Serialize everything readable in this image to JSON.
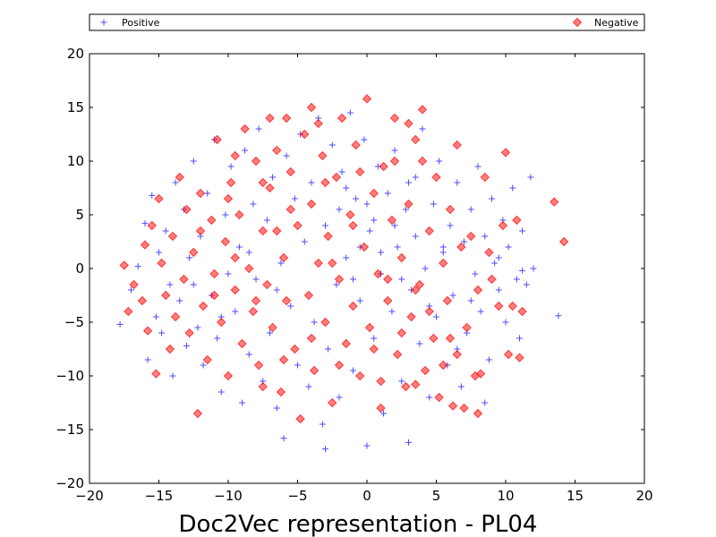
{
  "chart_data": {
    "type": "scatter",
    "title": "Doc2Vec representation - PL04",
    "xlabel": "",
    "ylabel": "",
    "xlim": [
      -20,
      20
    ],
    "ylim": [
      -20,
      20
    ],
    "xticks": [
      -20,
      -15,
      -10,
      -5,
      0,
      5,
      10,
      15,
      20
    ],
    "yticks": [
      -20,
      -15,
      -10,
      -5,
      0,
      5,
      10,
      15,
      20
    ],
    "grid": false,
    "legend_placement": "top, above plot, spanning full width",
    "series": [
      {
        "name": "Positive",
        "marker": "plus",
        "color": "#0000ff",
        "points": [
          [
            -17.8,
            -5.2
          ],
          [
            -17.0,
            -2.0
          ],
          [
            -16.5,
            0.2
          ],
          [
            -16.0,
            4.2
          ],
          [
            -15.8,
            -8.5
          ],
          [
            -15.5,
            6.8
          ],
          [
            -15.2,
            -4.5
          ],
          [
            -15.0,
            1.5
          ],
          [
            -14.8,
            -6.0
          ],
          [
            -14.5,
            3.5
          ],
          [
            -14.2,
            -1.5
          ],
          [
            -14.0,
            -10.0
          ],
          [
            -13.8,
            8.0
          ],
          [
            -13.5,
            -3.0
          ],
          [
            -13.2,
            5.5
          ],
          [
            -13.0,
            -7.2
          ],
          [
            -12.8,
            1.0
          ],
          [
            -12.5,
            10.0
          ],
          [
            -12.2,
            -5.5
          ],
          [
            -12.0,
            3.0
          ],
          [
            -11.8,
            -9.0
          ],
          [
            -11.5,
            7.0
          ],
          [
            -11.2,
            -2.5
          ],
          [
            -11.0,
            12.0
          ],
          [
            -10.8,
            -6.5
          ],
          [
            -10.5,
            -11.5
          ],
          [
            -10.2,
            5.0
          ],
          [
            -10.0,
            -0.5
          ],
          [
            -9.8,
            9.5
          ],
          [
            -9.5,
            -4.0
          ],
          [
            -9.2,
            2.0
          ],
          [
            -9.0,
            -12.5
          ],
          [
            -8.8,
            11.0
          ],
          [
            -8.5,
            -8.0
          ],
          [
            -8.2,
            6.0
          ],
          [
            -8.0,
            -1.0
          ],
          [
            -7.8,
            13.0
          ],
          [
            -7.5,
            -10.5
          ],
          [
            -7.2,
            4.5
          ],
          [
            -7.0,
            -6.0
          ],
          [
            -6.8,
            8.5
          ],
          [
            -6.5,
            -13.0
          ],
          [
            -6.2,
            0.5
          ],
          [
            -6.0,
            -15.8
          ],
          [
            -5.8,
            10.5
          ],
          [
            -5.5,
            -3.5
          ],
          [
            -5.2,
            6.5
          ],
          [
            -5.0,
            -9.0
          ],
          [
            -4.8,
            12.5
          ],
          [
            -4.5,
            2.5
          ],
          [
            -4.2,
            -11.0
          ],
          [
            -4.0,
            8.0
          ],
          [
            -3.8,
            -5.0
          ],
          [
            -3.5,
            14.0
          ],
          [
            -3.2,
            -14.5
          ],
          [
            -3.0,
            4.0
          ],
          [
            -2.8,
            -7.5
          ],
          [
            -2.5,
            11.5
          ],
          [
            -2.2,
            -1.5
          ],
          [
            -2.0,
            -12.0
          ],
          [
            -1.8,
            9.0
          ],
          [
            -1.5,
            1.0
          ],
          [
            -1.2,
            14.5
          ],
          [
            -1.0,
            -9.5
          ],
          [
            -0.8,
            6.5
          ],
          [
            -0.5,
            -3.0
          ],
          [
            -0.2,
            12.0
          ],
          [
            0.0,
            -16.5
          ],
          [
            0.2,
            3.5
          ],
          [
            0.5,
            -6.5
          ],
          [
            0.8,
            9.5
          ],
          [
            1.0,
            -0.5
          ],
          [
            1.2,
            -13.5
          ],
          [
            1.5,
            7.0
          ],
          [
            1.8,
            -4.0
          ],
          [
            2.0,
            11.0
          ],
          [
            2.2,
            2.0
          ],
          [
            2.5,
            -10.5
          ],
          [
            2.8,
            5.5
          ],
          [
            3.0,
            -16.2
          ],
          [
            3.2,
            -2.0
          ],
          [
            3.5,
            8.5
          ],
          [
            3.8,
            -7.0
          ],
          [
            4.0,
            13.0
          ],
          [
            4.2,
            0.0
          ],
          [
            4.5,
            -12.0
          ],
          [
            4.8,
            6.0
          ],
          [
            5.0,
            -4.5
          ],
          [
            5.2,
            10.0
          ],
          [
            5.5,
            1.5
          ],
          [
            5.8,
            -9.0
          ],
          [
            6.0,
            4.0
          ],
          [
            6.2,
            -2.5
          ],
          [
            6.5,
            8.0
          ],
          [
            6.8,
            -11.0
          ],
          [
            7.0,
            2.5
          ],
          [
            7.2,
            -6.0
          ],
          [
            7.5,
            5.5
          ],
          [
            7.8,
            -0.5
          ],
          [
            8.0,
            9.5
          ],
          [
            8.2,
            -4.0
          ],
          [
            8.5,
            3.0
          ],
          [
            8.8,
            -8.5
          ],
          [
            9.0,
            6.5
          ],
          [
            9.2,
            0.5
          ],
          [
            9.5,
            -2.0
          ],
          [
            9.8,
            4.5
          ],
          [
            10.0,
            -5.0
          ],
          [
            10.2,
            2.0
          ],
          [
            10.5,
            7.5
          ],
          [
            10.8,
            -1.0
          ],
          [
            11.0,
            -6.5
          ],
          [
            11.2,
            3.5
          ],
          [
            11.5,
            -1.5
          ],
          [
            11.8,
            8.5
          ],
          [
            12.0,
            0.0
          ],
          [
            13.8,
            -4.4
          ],
          [
            11.2,
            -0.2
          ],
          [
            8.5,
            -12.5
          ],
          [
            -3.0,
            -16.8
          ],
          [
            -1.5,
            7.5
          ],
          [
            0.5,
            4.5
          ],
          [
            -0.5,
            2.0
          ],
          [
            2.5,
            -1.0
          ],
          [
            3.5,
            3.0
          ],
          [
            1.0,
            1.5
          ],
          [
            -2.0,
            5.5
          ],
          [
            4.5,
            -3.5
          ],
          [
            6.5,
            -7.5
          ],
          [
            -6.5,
            -2.0
          ],
          [
            -8.5,
            1.5
          ],
          [
            -10.5,
            -4.5
          ],
          [
            -12.5,
            -1.5
          ],
          [
            0.0,
            6.0
          ],
          [
            2.0,
            4.0
          ],
          [
            -1.0,
            -1.0
          ],
          [
            5.5,
            2.0
          ],
          [
            7.5,
            -3.0
          ],
          [
            9.5,
            1.0
          ],
          [
            3.0,
            8.0
          ]
        ]
      },
      {
        "name": "Negative",
        "marker": "diamond",
        "color": "#ff0000",
        "points": [
          [
            -17.5,
            0.3
          ],
          [
            -17.2,
            -4.0
          ],
          [
            -16.8,
            -1.5
          ],
          [
            -16.2,
            -3.0
          ],
          [
            -16.0,
            2.2
          ],
          [
            -15.8,
            -5.8
          ],
          [
            -15.5,
            4.0
          ],
          [
            -15.2,
            -9.8
          ],
          [
            -15.0,
            6.5
          ],
          [
            -14.8,
            0.5
          ],
          [
            -14.5,
            -2.5
          ],
          [
            -14.2,
            -7.5
          ],
          [
            -14.0,
            3.0
          ],
          [
            -13.8,
            -4.5
          ],
          [
            -13.5,
            8.5
          ],
          [
            -13.2,
            -1.0
          ],
          [
            -13.0,
            5.5
          ],
          [
            -12.8,
            -6.0
          ],
          [
            -12.5,
            1.5
          ],
          [
            -12.2,
            -13.5
          ],
          [
            -12.0,
            7.0
          ],
          [
            -11.8,
            -3.5
          ],
          [
            -11.5,
            -8.5
          ],
          [
            -11.2,
            4.5
          ],
          [
            -11.0,
            -0.5
          ],
          [
            -10.8,
            12.0
          ],
          [
            -10.5,
            -5.0
          ],
          [
            -10.2,
            2.5
          ],
          [
            -10.0,
            -10.0
          ],
          [
            -9.8,
            8.0
          ],
          [
            -9.5,
            -2.0
          ],
          [
            -9.2,
            5.0
          ],
          [
            -9.0,
            -7.0
          ],
          [
            -8.8,
            13.0
          ],
          [
            -8.5,
            0.0
          ],
          [
            -8.2,
            -4.0
          ],
          [
            -8.0,
            10.0
          ],
          [
            -7.8,
            -9.0
          ],
          [
            -7.5,
            3.5
          ],
          [
            -7.2,
            -1.5
          ],
          [
            -7.0,
            7.5
          ],
          [
            -6.8,
            -5.5
          ],
          [
            -6.5,
            11.0
          ],
          [
            -6.2,
            -11.5
          ],
          [
            -6.0,
            1.0
          ],
          [
            -5.8,
            -3.0
          ],
          [
            -5.5,
            9.0
          ],
          [
            -5.2,
            -7.5
          ],
          [
            -5.0,
            4.0
          ],
          [
            -4.8,
            -14.0
          ],
          [
            -4.5,
            12.5
          ],
          [
            -4.2,
            -2.5
          ],
          [
            -4.0,
            6.0
          ],
          [
            -3.8,
            -9.5
          ],
          [
            -3.5,
            0.5
          ],
          [
            -3.2,
            10.5
          ],
          [
            -3.0,
            -5.0
          ],
          [
            -2.8,
            3.0
          ],
          [
            -2.5,
            -12.5
          ],
          [
            -2.2,
            8.5
          ],
          [
            -2.0,
            -1.0
          ],
          [
            -1.8,
            14.0
          ],
          [
            -1.5,
            -7.0
          ],
          [
            -1.2,
            5.0
          ],
          [
            -1.0,
            -3.5
          ],
          [
            -0.8,
            11.5
          ],
          [
            -0.5,
            -10.0
          ],
          [
            -0.2,
            2.0
          ],
          [
            0.0,
            15.8
          ],
          [
            0.2,
            -5.5
          ],
          [
            0.5,
            7.0
          ],
          [
            0.8,
            -0.5
          ],
          [
            1.0,
            -13.0
          ],
          [
            1.2,
            9.5
          ],
          [
            1.5,
            -3.0
          ],
          [
            1.8,
            4.5
          ],
          [
            2.0,
            14.0
          ],
          [
            2.2,
            -8.0
          ],
          [
            2.5,
            1.0
          ],
          [
            2.8,
            -11.0
          ],
          [
            3.0,
            6.0
          ],
          [
            3.2,
            -4.5
          ],
          [
            3.5,
            12.0
          ],
          [
            3.8,
            -1.5
          ],
          [
            4.0,
            14.8
          ],
          [
            4.2,
            -9.5
          ],
          [
            4.5,
            3.5
          ],
          [
            4.8,
            -6.5
          ],
          [
            5.0,
            8.5
          ],
          [
            5.2,
            -12.0
          ],
          [
            5.5,
            0.5
          ],
          [
            5.8,
            -3.0
          ],
          [
            6.0,
            5.5
          ],
          [
            6.2,
            -12.8
          ],
          [
            6.5,
            -8.0
          ],
          [
            6.8,
            2.0
          ],
          [
            7.0,
            -13.0
          ],
          [
            7.2,
            -5.5
          ],
          [
            7.5,
            3.0
          ],
          [
            7.8,
            -10.0
          ],
          [
            8.0,
            -2.0
          ],
          [
            8.2,
            -9.8
          ],
          [
            8.5,
            8.5
          ],
          [
            8.8,
            1.5
          ],
          [
            9.0,
            -1.0
          ],
          [
            9.5,
            -3.5
          ],
          [
            9.8,
            4.0
          ],
          [
            10.0,
            10.8
          ],
          [
            10.2,
            -8.0
          ],
          [
            10.5,
            -3.5
          ],
          [
            10.8,
            4.5
          ],
          [
            11.0,
            -8.3
          ],
          [
            11.2,
            -4.0
          ],
          [
            13.5,
            6.2
          ],
          [
            14.2,
            2.5
          ],
          [
            -5.8,
            14.0
          ],
          [
            -4.0,
            15.0
          ],
          [
            -7.0,
            14.0
          ],
          [
            -3.5,
            13.5
          ],
          [
            3.0,
            13.5
          ],
          [
            -1.0,
            4.0
          ],
          [
            1.5,
            -1.0
          ],
          [
            -2.5,
            0.5
          ],
          [
            3.5,
            -2.0
          ],
          [
            -6.5,
            3.5
          ],
          [
            -8.0,
            -3.0
          ],
          [
            -9.5,
            1.0
          ],
          [
            -11.0,
            -2.5
          ],
          [
            0.5,
            -7.5
          ],
          [
            2.5,
            -6.0
          ],
          [
            4.5,
            -4.0
          ],
          [
            6.0,
            -6.5
          ],
          [
            -4.0,
            -6.5
          ],
          [
            -6.0,
            -8.5
          ],
          [
            -2.0,
            -9.0
          ],
          [
            1.0,
            -10.5
          ],
          [
            3.5,
            -10.8
          ],
          [
            5.5,
            -9.0
          ],
          [
            -7.5,
            -11.0
          ],
          [
            -10.0,
            6.5
          ],
          [
            -12.0,
            3.5
          ],
          [
            -3.0,
            8.0
          ],
          [
            -0.5,
            9.0
          ],
          [
            2.0,
            10.0
          ],
          [
            4.0,
            10.0
          ],
          [
            6.5,
            11.5
          ],
          [
            -5.5,
            5.5
          ],
          [
            -7.5,
            8.0
          ],
          [
            -9.5,
            10.5
          ],
          [
            8.0,
            -13.5
          ]
        ]
      }
    ]
  }
}
